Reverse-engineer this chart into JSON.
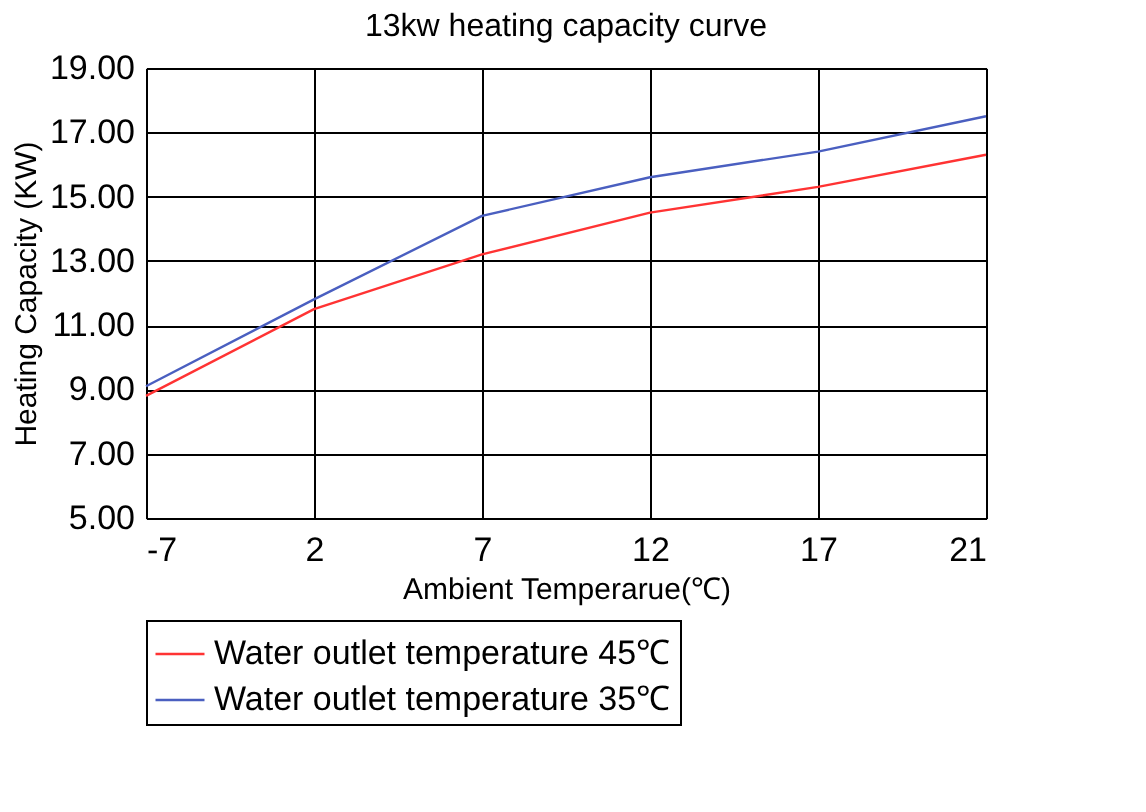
{
  "chart_data": {
    "type": "line",
    "title": "13kw heating capacity curve",
    "xlabel": "Ambient Temperarue(℃)",
    "ylabel": "Heating Capacity (KW)",
    "categories": [
      "-7",
      "2",
      "7",
      "12",
      "17",
      "21"
    ],
    "series": [
      {
        "name": "Water outlet temperature 45℃",
        "color": "#ff3333",
        "values": [
          8.8,
          11.5,
          13.2,
          14.5,
          15.3,
          16.3
        ]
      },
      {
        "name": "Water outlet temperature 35℃",
        "color": "#4a5fc0",
        "values": [
          9.1,
          11.8,
          14.4,
          15.6,
          16.4,
          17.5
        ]
      }
    ],
    "ylim": [
      5,
      19
    ],
    "yticks": [
      {
        "value": 5,
        "label": "5.00"
      },
      {
        "value": 7,
        "label": "7.00"
      },
      {
        "value": 9,
        "label": "9.00"
      },
      {
        "value": 11,
        "label": "11.00"
      },
      {
        "value": 13,
        "label": "13.00"
      },
      {
        "value": 15,
        "label": "15.00"
      },
      {
        "value": 17,
        "label": "17.00"
      },
      {
        "value": 19,
        "label": "19.00"
      }
    ],
    "grid": true,
    "legend": "bottom",
    "marker": "none",
    "line_style": "solid"
  }
}
